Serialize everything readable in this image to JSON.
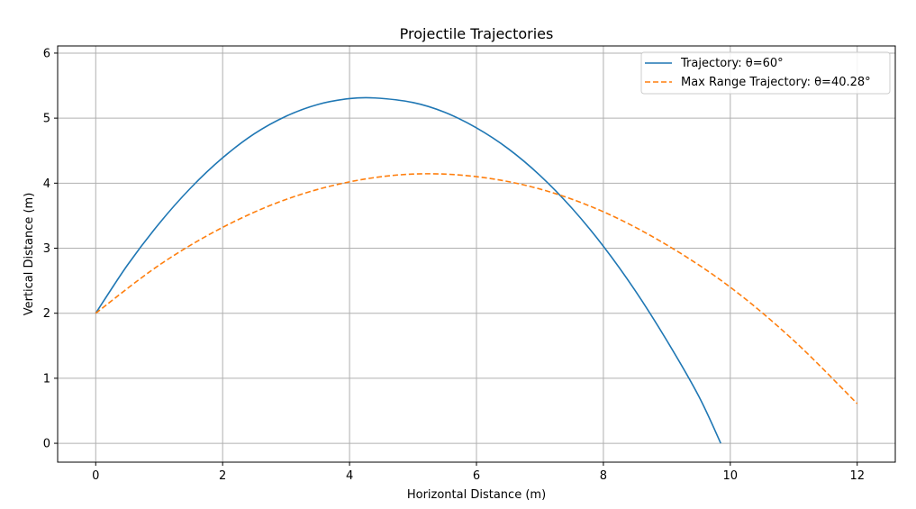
{
  "chart_data": {
    "type": "line",
    "title": "Projectile Trajectories",
    "xlabel": "Horizontal Distance (m)",
    "ylabel": "Vertical Distance (m)",
    "xlim": [
      -0.6,
      12.6
    ],
    "ylim": [
      -0.29,
      6.11
    ],
    "xticks": [
      0,
      2,
      4,
      6,
      8,
      10,
      12
    ],
    "yticks": [
      0,
      1,
      2,
      3,
      4,
      5,
      6
    ],
    "grid": true,
    "legend_position": "top-right",
    "series": [
      {
        "name": "Trajectory: θ=60°",
        "color": "#1f77b4",
        "style": "solid",
        "x": [
          0,
          0.5,
          1,
          1.5,
          2,
          2.5,
          3,
          3.5,
          4,
          4.4,
          5,
          5.5,
          6,
          6.5,
          7,
          7.5,
          8,
          8.5,
          9,
          9.5,
          9.85
        ],
        "y": [
          2.0,
          2.74,
          3.38,
          3.93,
          4.39,
          4.76,
          5.03,
          5.21,
          5.3,
          5.31,
          5.24,
          5.09,
          4.85,
          4.53,
          4.12,
          3.62,
          3.03,
          2.35,
          1.58,
          0.73,
          0.0
        ]
      },
      {
        "name": "Max Range Trajectory: θ=40.28°",
        "color": "#ff7f0e",
        "style": "dashed",
        "x": [
          0,
          1,
          2,
          3,
          4,
          5,
          6,
          7,
          8,
          9,
          10,
          11,
          12
        ],
        "y": [
          2.0,
          2.74,
          3.32,
          3.75,
          4.02,
          4.14,
          4.1,
          3.91,
          3.56,
          3.05,
          2.4,
          1.58,
          0.61
        ]
      }
    ]
  }
}
